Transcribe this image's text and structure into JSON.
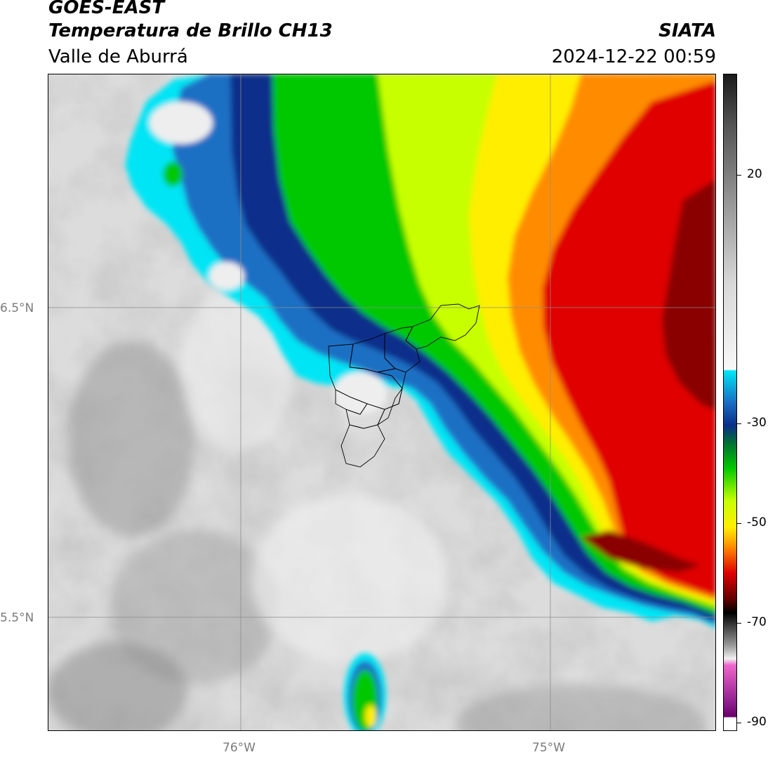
{
  "header": {
    "satellite": "GOES-EAST",
    "product": "Temperatura de Brillo CH13",
    "region": "Valle de Aburrá",
    "agency": "SIATA",
    "datetime": "2024-12-22 00:59"
  },
  "map": {
    "lat_labels": [
      "6.5°N",
      "5.5°N"
    ],
    "lon_labels": [
      "76°W",
      "75°W"
    ]
  },
  "colorbar": {
    "ticks": [
      "20",
      "-30",
      "-50",
      "-70",
      "-90"
    ],
    "colors": {
      "white": "#ffffff",
      "light_gray": "#e6e6e6",
      "dark_gray": "#8a8a8a",
      "cyan": "#00e5f5",
      "dark_blue": "#0a2f8a",
      "green": "#00c800",
      "yellow": "#ffee00",
      "orange": "#ff8c00",
      "red": "#e00000",
      "black": "#000000",
      "magenta": "#cc33cc"
    }
  }
}
